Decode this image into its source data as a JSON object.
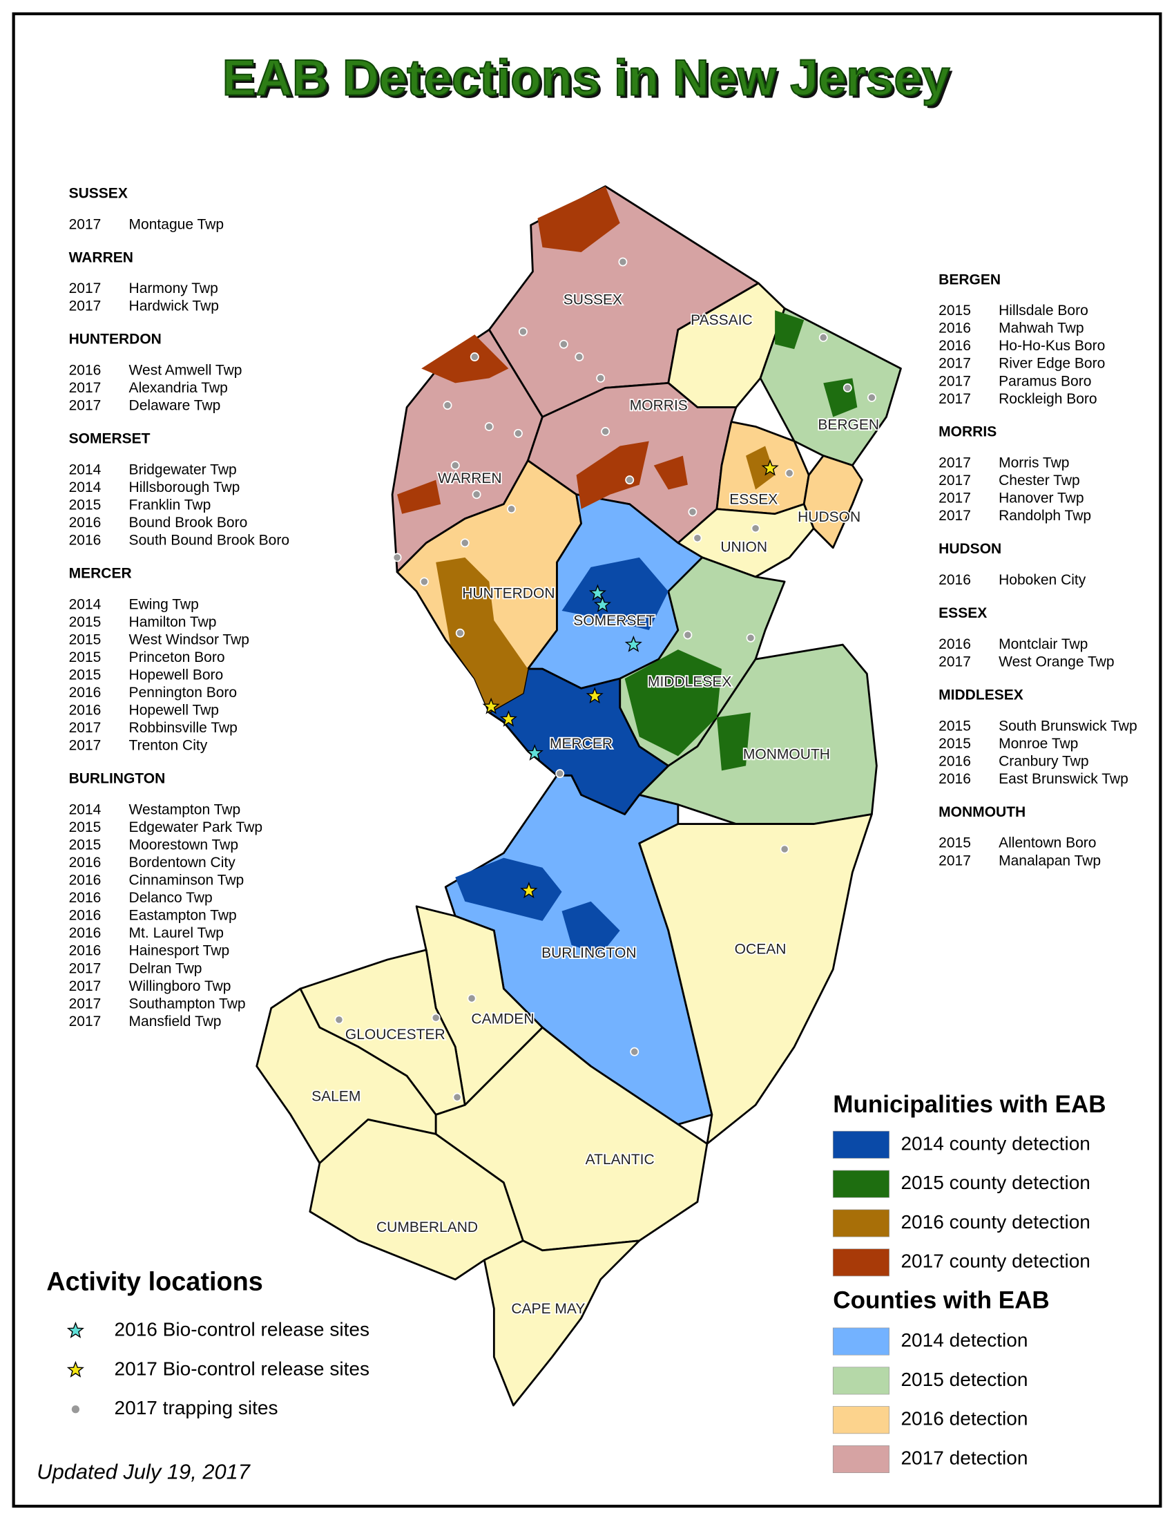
{
  "title": "EAB Detections in New Jersey",
  "left_lists": [
    {
      "county": "SUSSEX",
      "entries": [
        {
          "year": 2017,
          "place": "Montague Twp"
        }
      ]
    },
    {
      "county": "WARREN",
      "entries": [
        {
          "year": 2017,
          "place": "Harmony Twp"
        },
        {
          "year": 2017,
          "place": "Hardwick Twp"
        }
      ]
    },
    {
      "county": "HUNTERDON",
      "entries": [
        {
          "year": 2016,
          "place": "West Amwell Twp"
        },
        {
          "year": 2017,
          "place": "Alexandria Twp"
        },
        {
          "year": 2017,
          "place": "Delaware Twp"
        }
      ]
    },
    {
      "county": "SOMERSET",
      "entries": [
        {
          "year": 2014,
          "place": "Bridgewater Twp"
        },
        {
          "year": 2014,
          "place": "Hillsborough Twp"
        },
        {
          "year": 2015,
          "place": "Franklin Twp"
        },
        {
          "year": 2016,
          "place": "Bound Brook Boro"
        },
        {
          "year": 2016,
          "place": "South Bound Brook Boro"
        }
      ]
    },
    {
      "county": "MERCER",
      "entries": [
        {
          "year": 2014,
          "place": "Ewing Twp"
        },
        {
          "year": 2015,
          "place": "Hamilton Twp"
        },
        {
          "year": 2015,
          "place": "West Windsor Twp"
        },
        {
          "year": 2015,
          "place": "Princeton Boro"
        },
        {
          "year": 2015,
          "place": "Hopewell Boro"
        },
        {
          "year": 2016,
          "place": "Pennington Boro"
        },
        {
          "year": 2016,
          "place": "Hopewell Twp"
        },
        {
          "year": 2017,
          "place": "Robbinsville Twp"
        },
        {
          "year": 2017,
          "place": "Trenton City"
        }
      ]
    },
    {
      "county": "BURLINGTON",
      "entries": [
        {
          "year": 2014,
          "place": "Westampton Twp"
        },
        {
          "year": 2015,
          "place": "Edgewater Park Twp"
        },
        {
          "year": 2015,
          "place": "Moorestown Twp"
        },
        {
          "year": 2016,
          "place": "Bordentown City"
        },
        {
          "year": 2016,
          "place": "Cinnaminson Twp"
        },
        {
          "year": 2016,
          "place": "Delanco Twp"
        },
        {
          "year": 2016,
          "place": "Eastampton Twp"
        },
        {
          "year": 2016,
          "place": "Mt. Laurel Twp"
        },
        {
          "year": 2016,
          "place": "Hainesport Twp"
        },
        {
          "year": 2017,
          "place": "Delran Twp"
        },
        {
          "year": 2017,
          "place": "Willingboro Twp"
        },
        {
          "year": 2017,
          "place": "Southampton Twp"
        },
        {
          "year": 2017,
          "place": "Mansfield Twp"
        }
      ]
    }
  ],
  "right_lists": [
    {
      "county": "BERGEN",
      "entries": [
        {
          "year": 2015,
          "place": "Hillsdale Boro"
        },
        {
          "year": 2016,
          "place": "Mahwah Twp"
        },
        {
          "year": 2016,
          "place": "Ho-Ho-Kus Boro"
        },
        {
          "year": 2017,
          "place": "River Edge Boro"
        },
        {
          "year": 2017,
          "place": "Paramus Boro"
        },
        {
          "year": 2017,
          "place": "Rockleigh Boro"
        }
      ]
    },
    {
      "county": "MORRIS",
      "entries": [
        {
          "year": 2017,
          "place": "Morris Twp"
        },
        {
          "year": 2017,
          "place": "Chester Twp"
        },
        {
          "year": 2017,
          "place": "Hanover Twp"
        },
        {
          "year": 2017,
          "place": "Randolph Twp"
        }
      ]
    },
    {
      "county": "HUDSON",
      "entries": [
        {
          "year": 2016,
          "place": "Hoboken City"
        }
      ]
    },
    {
      "county": "ESSEX",
      "entries": [
        {
          "year": 2016,
          "place": "Montclair Twp"
        },
        {
          "year": 2017,
          "place": "West Orange Twp"
        }
      ]
    },
    {
      "county": "MIDDLESEX",
      "entries": [
        {
          "year": 2015,
          "place": "South Brunswick Twp"
        },
        {
          "year": 2015,
          "place": "Monroe Twp"
        },
        {
          "year": 2016,
          "place": "Cranbury Twp"
        },
        {
          "year": 2016,
          "place": "East Brunswick Twp"
        }
      ]
    },
    {
      "county": "MONMOUTH",
      "entries": [
        {
          "year": 2015,
          "place": "Allentown Boro"
        },
        {
          "year": 2017,
          "place": "Manalapan Twp"
        }
      ]
    }
  ],
  "map_labels": [
    "SUSSEX",
    "PASSAIC",
    "BERGEN",
    "MORRIS",
    "WARREN",
    "ESSEX",
    "HUDSON",
    "UNION",
    "HUNTERDON",
    "SOMERSET",
    "MIDDLESEX",
    "MERCER",
    "MONMOUTH",
    "OCEAN",
    "BURLINGTON",
    "CAMDEN",
    "GLOUCESTER",
    "SALEM",
    "ATLANTIC",
    "CUMBERLAND",
    "CAPE MAY"
  ],
  "legend": {
    "municipalities": {
      "title": "Municipalities with EAB",
      "items": [
        {
          "label": "2014 county detection",
          "color": "#0a4aa8"
        },
        {
          "label": "2015 county detection",
          "color": "#1e6e10"
        },
        {
          "label": "2016 county detection",
          "color": "#a86f08"
        },
        {
          "label": "2017 county detection",
          "color": "#a83a08"
        }
      ]
    },
    "counties": {
      "title": "Counties with EAB",
      "items": [
        {
          "label": "2014 detection",
          "color": "#73b2ff"
        },
        {
          "label": "2015 detection",
          "color": "#b5d8a8"
        },
        {
          "label": "2016 detection",
          "color": "#fcd38d"
        },
        {
          "label": "2017 detection",
          "color": "#d6a3a3"
        }
      ]
    }
  },
  "activity": {
    "title": "Activity locations",
    "items": [
      "2016 Bio-control release sites",
      "2017 Bio-control release sites",
      "2017 trapping sites"
    ]
  },
  "updated": "Updated July 19, 2017"
}
